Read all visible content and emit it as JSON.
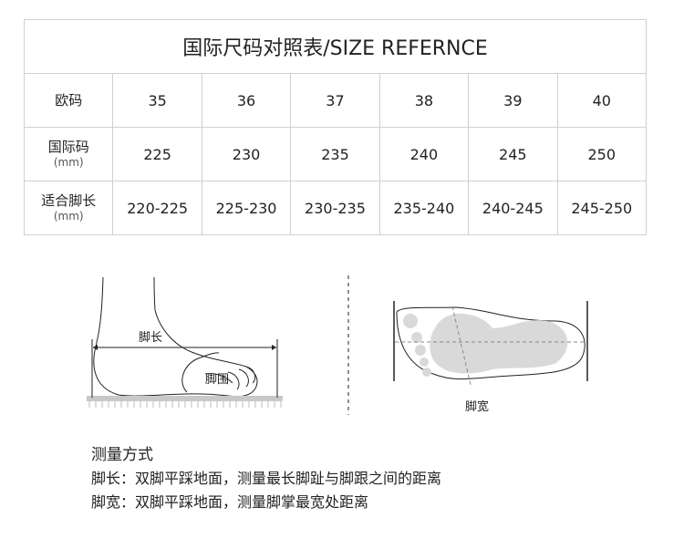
{
  "table": {
    "title": "国际尺码对照表/SIZE REFERNCE",
    "rows": [
      {
        "label": "欧码",
        "unit": "",
        "values": [
          "35",
          "36",
          "37",
          "38",
          "39",
          "40"
        ]
      },
      {
        "label": "国际码",
        "unit": "(mm)",
        "values": [
          "225",
          "230",
          "235",
          "240",
          "245",
          "250"
        ]
      },
      {
        "label": "适合脚长",
        "unit": "(mm)",
        "values": [
          "220-225",
          "225-230",
          "230-235",
          "235-240",
          "240-245",
          "245-250"
        ]
      }
    ]
  },
  "illustration": {
    "foot_length_label": "脚长",
    "foot_girth_label": "脚围",
    "foot_width_label": "脚宽",
    "sole_fill_color": "#d9d9d9"
  },
  "method": {
    "heading": "测量方式",
    "lines": [
      "脚长：双脚平踩地面，测量最长脚趾与脚跟之间的距离",
      "脚宽：双脚平踩地面，测量脚掌最宽处距离"
    ]
  }
}
